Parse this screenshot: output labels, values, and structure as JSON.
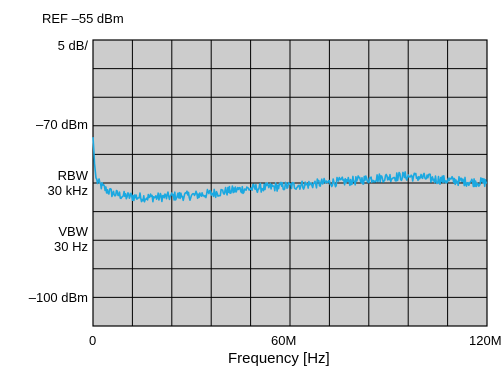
{
  "colors": {
    "plot_background": "#cccccc",
    "grid": "#000000",
    "trace": "#1ba8e0"
  },
  "labels": {
    "ref_level": "REF –55 dBm",
    "scale": "5 dB/",
    "level_70": "–70 dBm",
    "rbw_title": "RBW",
    "rbw_value": "30 kHz",
    "vbw_title": "VBW",
    "vbw_value": "30 Hz",
    "level_100": "–100 dBm",
    "x_start": "0",
    "x_mid": "60M",
    "x_end": "120M",
    "xlabel": "Frequency [Hz]"
  },
  "chart_data": {
    "type": "line",
    "title": "",
    "xlabel": "Frequency [Hz]",
    "ylabel": "",
    "x_unit": "MHz",
    "y_unit": "dBm",
    "xlim": [
      0,
      120
    ],
    "ylim": [
      -105,
      -55
    ],
    "grid": true,
    "x_ticks": [
      {
        "value": 0,
        "label": "0"
      },
      {
        "value": 60,
        "label": "60M"
      },
      {
        "value": 120,
        "label": "120M"
      }
    ],
    "y_ticks": [
      {
        "value": -55,
        "label": "REF –55 dBm"
      },
      {
        "value": -70,
        "label": "–70 dBm"
      },
      {
        "value": -100,
        "label": "–100 dBm"
      }
    ],
    "series": [
      {
        "x": [
          0,
          0.5,
          1,
          2,
          4,
          6,
          8,
          10,
          15,
          20,
          25,
          30,
          35,
          40,
          45,
          50,
          55,
          60,
          65,
          70,
          75,
          80,
          85,
          90,
          95,
          100,
          105,
          110,
          115,
          120
        ],
        "y": [
          -72,
          -77,
          -79.5,
          -80.2,
          -81.2,
          -81.8,
          -82.1,
          -82.3,
          -82.5,
          -82.5,
          -82.3,
          -82.2,
          -81.9,
          -81.5,
          -81.1,
          -80.9,
          -80.7,
          -80.5,
          -80.3,
          -80.0,
          -79.8,
          -79.6,
          -79.2,
          -79.0,
          -78.8,
          -79.0,
          -79.4,
          -79.6,
          -79.8,
          -79.9
        ]
      }
    ]
  }
}
